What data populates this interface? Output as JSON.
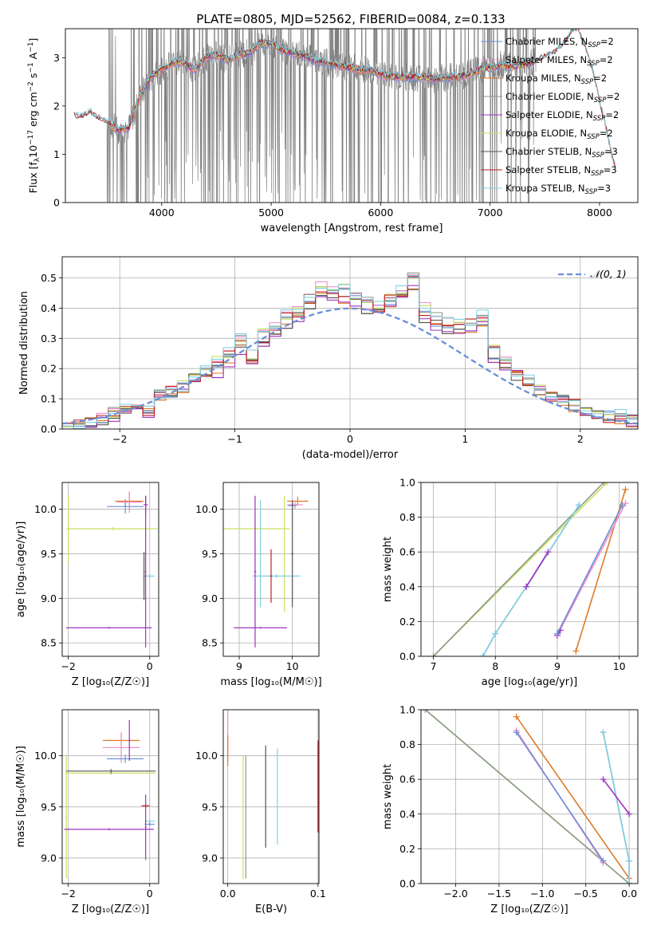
{
  "figure_title": "PLATE=0805, MJD=52562, FIBERID=0084, z=0.133",
  "colors": {
    "c_miles": "#6a8fd8",
    "s_miles": "#f08cc8",
    "k_miles": "#e07a24",
    "c_elodie": "#8a9a8a",
    "s_elodie": "#a030c0",
    "k_elodie": "#c8e060",
    "c_stelib": "#555555",
    "s_stelib": "#c02020",
    "k_stelib": "#80d0e0",
    "data": "#808080",
    "grid": "#b0b0b0"
  },
  "chart_data": [
    {
      "id": "spectrum",
      "type": "line",
      "title": "",
      "xlabel": "wavelength [Angstrom, rest frame]",
      "ylabel_parts": {
        "pre": "Flux [f",
        "sub1": "λ",
        "mid": "10",
        "sup1": "−17",
        "mid2": " erg cm",
        "sup2": "−2",
        "mid3": " s",
        "sup3": "−1",
        "mid4": " A",
        "sup4": "−1",
        "post": "]"
      },
      "xlim": [
        3120,
        8350
      ],
      "ylim": [
        0,
        3.6
      ],
      "xticks": [
        4000,
        5000,
        6000,
        7000,
        8000
      ],
      "yticks": [
        0,
        1,
        2,
        3
      ],
      "grid": false,
      "legend_position": "top-right",
      "legend": [
        {
          "label": "Chabrier MILES, N",
          "sub": "SSP",
          "suffix": "=2",
          "color": "c_miles"
        },
        {
          "label": "Salpeter MILES, N",
          "sub": "SSP",
          "suffix": "=2",
          "color": "s_miles"
        },
        {
          "label": "Kroupa MILES, N",
          "sub": "SSP",
          "suffix": "=2",
          "color": "k_miles"
        },
        {
          "label": "Chabrier ELODIE, N",
          "sub": "SSP",
          "suffix": "=2",
          "color": "c_elodie"
        },
        {
          "label": "Salpeter ELODIE, N",
          "sub": "SSP",
          "suffix": "=2",
          "color": "s_elodie"
        },
        {
          "label": "Kroupa ELODIE, N",
          "sub": "SSP",
          "suffix": "=2",
          "color": "k_elodie"
        },
        {
          "label": "Chabrier STELIB, N",
          "sub": "SSP",
          "suffix": "=3",
          "color": "c_stelib"
        },
        {
          "label": "Salpeter STELIB, N",
          "sub": "SSP",
          "suffix": "=3",
          "color": "s_stelib"
        },
        {
          "label": "Kroupa STELIB, N",
          "sub": "SSP",
          "suffix": "=3",
          "color": "k_stelib"
        }
      ],
      "model_envelope": {
        "x": [
          3450,
          3520,
          3600,
          3700,
          3800,
          3900,
          4000,
          4100,
          4200,
          4300,
          4400,
          4500,
          4600,
          4700,
          4800,
          4850,
          4900,
          5000,
          5100,
          5200,
          5300,
          5400,
          5500,
          5600,
          5700,
          5800,
          5900,
          6000,
          6100,
          6200,
          6300,
          6400,
          6500,
          6600,
          6700,
          6800,
          6900,
          7000,
          7100,
          7200,
          7300,
          7400
        ],
        "y": [
          1.7,
          1.65,
          1.5,
          1.55,
          2.2,
          2.6,
          2.75,
          2.9,
          2.9,
          2.75,
          3.0,
          3.05,
          2.95,
          3.05,
          3.1,
          3.2,
          3.3,
          3.3,
          3.15,
          3.1,
          3.05,
          2.95,
          2.9,
          2.85,
          2.8,
          2.75,
          2.75,
          2.65,
          2.6,
          2.6,
          2.6,
          2.6,
          2.55,
          2.6,
          2.6,
          2.65,
          2.75,
          2.8,
          2.85,
          2.8,
          2.85,
          2.9
        ]
      },
      "stelib_extension": {
        "x": [
          3200,
          3250,
          3300,
          3350,
          3400,
          3450,
          7400,
          7500,
          7600,
          7700,
          7750,
          7800,
          7850,
          7900,
          7950,
          8000,
          8050,
          8100,
          8150
        ],
        "y": [
          1.8,
          1.75,
          1.8,
          1.85,
          1.75,
          1.7,
          2.9,
          3.0,
          3.1,
          3.35,
          3.55,
          3.6,
          3.3,
          3.0,
          2.6,
          2.1,
          1.6,
          1.1,
          0.6
        ]
      },
      "data_range": [
        3500,
        7420
      ]
    },
    {
      "id": "residuals",
      "type": "step",
      "title": "",
      "xlabel": "(data-model)/error",
      "ylabel": "Normed distribution",
      "xlim": [
        -2.5,
        2.5
      ],
      "ylim": [
        0,
        0.57
      ],
      "xticks": [
        -2,
        -1,
        0,
        1,
        2
      ],
      "yticks": [
        0.0,
        0.1,
        0.2,
        0.3,
        0.4,
        0.5
      ],
      "grid": true,
      "legend_position": "top-right",
      "legend": [
        {
          "label": "𝒩(0, 1)",
          "color": "c_miles",
          "dashed": true
        }
      ],
      "bin_edges_start": -2.5,
      "bin_width": 0.1,
      "base_histogram": [
        0.0,
        0.01,
        0.02,
        0.03,
        0.05,
        0.07,
        0.09,
        0.06,
        0.11,
        0.12,
        0.14,
        0.17,
        0.19,
        0.21,
        0.24,
        0.28,
        0.23,
        0.3,
        0.33,
        0.36,
        0.38,
        0.42,
        0.46,
        0.44,
        0.45,
        0.43,
        0.41,
        0.4,
        0.42,
        0.45,
        0.49,
        0.38,
        0.36,
        0.34,
        0.33,
        0.34,
        0.36,
        0.25,
        0.22,
        0.18,
        0.16,
        0.13,
        0.11,
        0.09,
        0.08,
        0.06,
        0.05,
        0.04,
        0.04,
        0.03
      ],
      "series_offsets": [
        0.0,
        0.02,
        -0.015,
        0.01,
        -0.02,
        0.015,
        -0.01,
        0.005,
        0.02
      ]
    },
    {
      "id": "age_vs_z",
      "type": "errorbar",
      "xlabel": "Z [log₁₀(Z/Z☉)]",
      "ylabel": "age  [log₁₀(age/yr)]",
      "xlim": [
        -2.15,
        0.22
      ],
      "ylim": [
        8.35,
        10.3
      ],
      "xticks": [
        -2,
        0
      ],
      "yticks": [
        8.5,
        9.0,
        9.5,
        10.0
      ],
      "grid": true,
      "points": [
        {
          "x": -0.6,
          "y": 10.03,
          "xerr": 0.45,
          "yerr": 0.08,
          "color": "c_miles"
        },
        {
          "x": -0.5,
          "y": 10.09,
          "xerr": 0.35,
          "yerr": 0.1,
          "color": "k_miles"
        },
        {
          "x": -0.5,
          "y": 10.08,
          "xerr": 0.3,
          "yerr": 0.12,
          "color": "s_miles"
        },
        {
          "x": -0.1,
          "y": 10.05,
          "xerr": 0.05,
          "yerr": 0.1,
          "color": "s_elodie"
        },
        {
          "x": -2.0,
          "y": 9.78,
          "xerr": 0.05,
          "yerr": 0.38,
          "color": "k_elodie"
        },
        {
          "x": -0.9,
          "y": 9.78,
          "xerr": 1.1,
          "yerr": 0.02,
          "color": "k_elodie"
        },
        {
          "x": 0.0,
          "y": 9.25,
          "xerr": 0.12,
          "yerr": 0.02,
          "color": "k_stelib"
        },
        {
          "x": -0.14,
          "y": 9.25,
          "xerr": 0.02,
          "yerr": 0.27,
          "color": "c_stelib"
        },
        {
          "x": -1.0,
          "y": 8.67,
          "xerr": 1.05,
          "yerr": 0.01,
          "color": "s_elodie"
        },
        {
          "x": -0.1,
          "y": 9.3,
          "xerr": 0.02,
          "yerr": 0.85,
          "color": "s_elodie"
        }
      ]
    },
    {
      "id": "age_vs_mass",
      "type": "errorbar",
      "xlabel": "mass [log₁₀(M/M☉)]",
      "ylabel": "",
      "xlim": [
        8.7,
        10.5
      ],
      "ylim": [
        8.35,
        10.3
      ],
      "xticks": [
        9,
        10
      ],
      "yticks": [
        8.5,
        9.0,
        9.5,
        10.0
      ],
      "grid": true,
      "points": [
        {
          "x": 10.1,
          "y": 10.09,
          "xerr": 0.2,
          "yerr": 0.05,
          "color": "k_miles"
        },
        {
          "x": 10.05,
          "y": 10.05,
          "xerr": 0.15,
          "yerr": 0.05,
          "color": "s_miles"
        },
        {
          "x": 10.0,
          "y": 10.04,
          "xerr": 0.08,
          "yerr": 0.04,
          "color": "c_miles"
        },
        {
          "x": 9.3,
          "y": 9.78,
          "xerr": 0.65,
          "yerr": 0.02,
          "color": "k_elodie"
        },
        {
          "x": 9.85,
          "y": 9.5,
          "xerr": 0.02,
          "yerr": 0.65,
          "color": "k_elodie"
        },
        {
          "x": 9.7,
          "y": 9.25,
          "xerr": 0.45,
          "yerr": 0.02,
          "color": "k_stelib"
        },
        {
          "x": 9.4,
          "y": 9.5,
          "xerr": 0.02,
          "yerr": 0.6,
          "color": "k_stelib"
        },
        {
          "x": 9.6,
          "y": 9.25,
          "xerr": 0.02,
          "yerr": 0.3,
          "color": "s_stelib"
        },
        {
          "x": 9.3,
          "y": 9.3,
          "xerr": 0.02,
          "yerr": 0.85,
          "color": "s_elodie"
        },
        {
          "x": 9.4,
          "y": 8.67,
          "xerr": 0.5,
          "yerr": 0.01,
          "color": "s_elodie"
        },
        {
          "x": 10.0,
          "y": 9.5,
          "xerr": 0.02,
          "yerr": 0.6,
          "color": "c_stelib"
        }
      ]
    },
    {
      "id": "weight_vs_age",
      "type": "line",
      "xlabel": "age  [log₁₀(age/yr)]",
      "ylabel": "mass weight",
      "xlim": [
        6.8,
        10.3
      ],
      "ylim": [
        0,
        1.0
      ],
      "xticks": [
        7,
        8,
        9,
        10
      ],
      "yticks": [
        0.0,
        0.2,
        0.4,
        0.6,
        0.8,
        1.0
      ],
      "grid": true,
      "series": [
        {
          "color": "k_elodie",
          "x": [
            7.0,
            9.8
          ],
          "y": [
            0.0,
            1.0
          ]
        },
        {
          "color": "c_elodie",
          "x": [
            7.0,
            9.75
          ],
          "y": [
            0.0,
            1.0
          ]
        },
        {
          "color": "c_miles",
          "x": [
            7.8,
            8.0,
            8.5,
            9.35
          ],
          "y": [
            0.0,
            0.13,
            0.4,
            0.87
          ]
        },
        {
          "color": "k_stelib",
          "x": [
            7.8,
            8.0,
            8.5,
            9.35
          ],
          "y": [
            0.0,
            0.13,
            0.4,
            0.87
          ]
        },
        {
          "color": "s_elodie",
          "x": [
            8.5,
            8.85
          ],
          "y": [
            0.4,
            0.6
          ]
        },
        {
          "color": "k_miles",
          "x": [
            9.3,
            10.1
          ],
          "y": [
            0.03,
            0.96
          ]
        },
        {
          "color": "s_miles",
          "x": [
            9.0,
            10.1
          ],
          "y": [
            0.12,
            0.88
          ]
        },
        {
          "color": "s_elodie",
          "x": [
            9.0,
            9.05
          ],
          "y": [
            0.12,
            0.15
          ]
        },
        {
          "color": "c_miles",
          "x": [
            9.0,
            10.05
          ],
          "y": [
            0.13,
            0.87
          ]
        }
      ]
    },
    {
      "id": "mass_vs_z",
      "type": "errorbar",
      "xlabel": "Z [log₁₀(Z/Z☉)]",
      "ylabel": "mass [log₁₀(M/M☉)]",
      "xlim": [
        -2.15,
        0.22
      ],
      "ylim": [
        8.75,
        10.45
      ],
      "xticks": [
        -2,
        0
      ],
      "yticks": [
        9.0,
        9.5,
        10.0
      ],
      "grid": true,
      "points": [
        {
          "x": -0.7,
          "y": 10.15,
          "xerr": 0.45,
          "yerr": 0.05,
          "color": "k_miles"
        },
        {
          "x": -0.7,
          "y": 10.08,
          "xerr": 0.45,
          "yerr": 0.15,
          "color": "s_miles"
        },
        {
          "x": -0.6,
          "y": 9.97,
          "xerr": 0.45,
          "yerr": 0.04,
          "color": "c_miles"
        },
        {
          "x": -0.5,
          "y": 10.15,
          "xerr": 0.02,
          "yerr": 0.2,
          "color": "s_elodie"
        },
        {
          "x": -0.95,
          "y": 9.83,
          "xerr": 1.1,
          "yerr": 0.02,
          "color": "k_elodie"
        },
        {
          "x": -2.05,
          "y": 9.4,
          "xerr": 0.02,
          "yerr": 0.6,
          "color": "k_elodie"
        },
        {
          "x": -0.95,
          "y": 9.85,
          "xerr": 1.1,
          "yerr": 0.02,
          "color": "c_stelib"
        },
        {
          "x": -0.1,
          "y": 9.51,
          "xerr": 0.1,
          "yerr": 0.02,
          "color": "s_stelib"
        },
        {
          "x": 0.0,
          "y": 9.36,
          "xerr": 0.12,
          "yerr": 0.02,
          "color": "k_stelib"
        },
        {
          "x": 0.0,
          "y": 9.33,
          "xerr": 0.12,
          "yerr": 0.02,
          "color": "c_miles"
        },
        {
          "x": -1.0,
          "y": 9.28,
          "xerr": 1.1,
          "yerr": 0.01,
          "color": "s_elodie"
        },
        {
          "x": -0.1,
          "y": 9.3,
          "xerr": 0.02,
          "yerr": 0.32,
          "color": "s_elodie"
        }
      ]
    },
    {
      "id": "mass_vs_ebv",
      "type": "errorbar",
      "xlabel": "E(B-V)",
      "ylabel": "",
      "xlim": [
        -0.005,
        0.101
      ],
      "ylim": [
        8.75,
        10.45
      ],
      "xticks": [
        0.0,
        0.1
      ],
      "yticks": [
        9.0,
        9.5,
        10.0
      ],
      "grid": true,
      "points": [
        {
          "x": 0.0,
          "y": 10.2,
          "xerr": 0.0,
          "yerr": 0.25,
          "color": "s_miles"
        },
        {
          "x": 0.0,
          "y": 10.05,
          "xerr": 0.0,
          "yerr": 0.15,
          "color": "k_miles"
        },
        {
          "x": 0.017,
          "y": 9.4,
          "xerr": 0.0,
          "yerr": 0.6,
          "color": "k_elodie"
        },
        {
          "x": 0.02,
          "y": 9.4,
          "xerr": 0.0,
          "yerr": 0.6,
          "color": "c_elodie"
        },
        {
          "x": 0.042,
          "y": 9.6,
          "xerr": 0.0,
          "yerr": 0.5,
          "color": "c_stelib"
        },
        {
          "x": 0.055,
          "y": 9.6,
          "xerr": 0.0,
          "yerr": 0.47,
          "color": "k_stelib"
        },
        {
          "x": 0.1,
          "y": 9.7,
          "xerr": 0.0,
          "yerr": 0.45,
          "color": "s_stelib"
        }
      ]
    },
    {
      "id": "weight_vs_z",
      "type": "line",
      "xlabel": "Z [log₁₀(Z/Z☉)]",
      "ylabel": "mass weight",
      "xlim": [
        -2.4,
        0.1
      ],
      "ylim": [
        0,
        1.0
      ],
      "xticks": [
        -2.0,
        -1.5,
        -1.0,
        -0.5,
        0.0
      ],
      "yticks": [
        0.0,
        0.2,
        0.4,
        0.6,
        0.8,
        1.0
      ],
      "grid": true,
      "series": [
        {
          "color": "k_elodie",
          "x": [
            -2.35,
            0.0
          ],
          "y": [
            1.0,
            0.0
          ]
        },
        {
          "color": "c_elodie",
          "x": [
            -2.35,
            0.0
          ],
          "y": [
            1.0,
            0.0
          ]
        },
        {
          "color": "k_miles",
          "x": [
            -1.3,
            0.0
          ],
          "y": [
            0.96,
            0.03
          ]
        },
        {
          "color": "s_miles",
          "x": [
            -1.3,
            -0.3
          ],
          "y": [
            0.88,
            0.12
          ]
        },
        {
          "color": "c_miles",
          "x": [
            -1.3,
            -0.3
          ],
          "y": [
            0.87,
            0.13
          ]
        },
        {
          "color": "c_miles",
          "x": [
            -0.3,
            0.0,
            0.0
          ],
          "y": [
            0.87,
            0.13,
            0.0
          ]
        },
        {
          "color": "k_stelib",
          "x": [
            -0.3,
            0.0,
            0.0
          ],
          "y": [
            0.87,
            0.13,
            0.0
          ]
        },
        {
          "color": "s_elodie",
          "x": [
            -0.3,
            0.0
          ],
          "y": [
            0.6,
            0.4
          ]
        }
      ]
    }
  ]
}
